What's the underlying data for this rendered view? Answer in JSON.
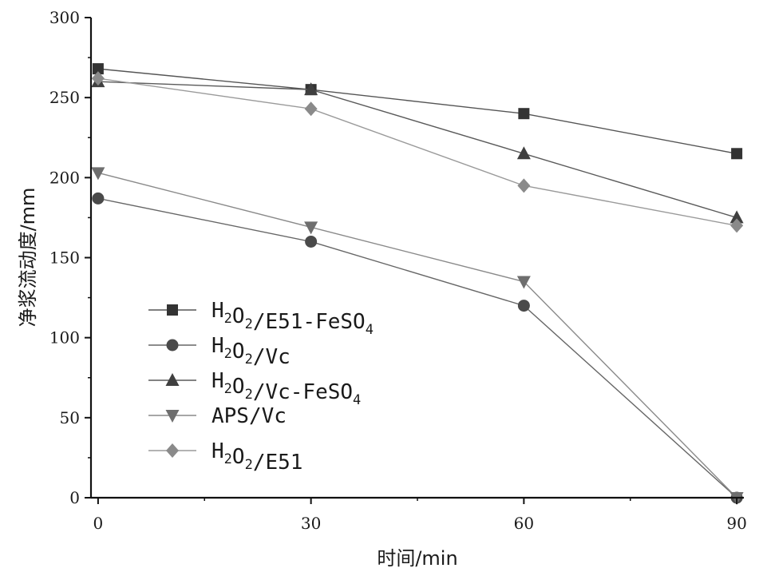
{
  "chart_data": {
    "type": "line",
    "xlabel": "时间/min",
    "ylabel": "净浆流动度/mm",
    "x": [
      0,
      30,
      60,
      90
    ],
    "xlim": [
      -1,
      91
    ],
    "ylim": [
      0,
      300
    ],
    "xticks": [
      "0",
      "30",
      "60",
      "90"
    ],
    "yticks": [
      "0",
      "50",
      "100",
      "150",
      "200",
      "250",
      "300"
    ],
    "grid": false,
    "legend_position": "lower-left",
    "series": [
      {
        "name": "H2O2/E51-FeSO4",
        "label_parts": [
          [
            "H",
            ""
          ],
          [
            "2",
            "sub"
          ],
          [
            "O",
            ""
          ],
          [
            "2",
            "sub"
          ],
          [
            "/E51-FeSO",
            ""
          ],
          [
            "4",
            "sub"
          ]
        ],
        "marker": "square",
        "color": "#333333",
        "line_color": "#555555",
        "values": [
          268,
          255,
          240,
          215
        ]
      },
      {
        "name": "H2O2/Vc",
        "label_parts": [
          [
            "H",
            ""
          ],
          [
            "2",
            "sub"
          ],
          [
            "O",
            ""
          ],
          [
            "2",
            "sub"
          ],
          [
            "/Vc",
            ""
          ]
        ],
        "marker": "circle",
        "color": "#4a4a4a",
        "line_color": "#666666",
        "values": [
          187,
          160,
          120,
          0
        ]
      },
      {
        "name": "H2O2/Vc-FeSO4",
        "label_parts": [
          [
            "H",
            ""
          ],
          [
            "2",
            "sub"
          ],
          [
            "O",
            ""
          ],
          [
            "2",
            "sub"
          ],
          [
            "/Vc-FeSO",
            ""
          ],
          [
            "4",
            "sub"
          ]
        ],
        "marker": "triangle-up",
        "color": "#3f3f3f",
        "line_color": "#5a5a5a",
        "values": [
          260,
          255,
          215,
          175
        ]
      },
      {
        "name": "APS/Vc",
        "label_parts": [
          [
            "APS/Vc",
            ""
          ]
        ],
        "marker": "triangle-down",
        "color": "#6e6e6e",
        "line_color": "#8a8a8a",
        "values": [
          203,
          169,
          135,
          0
        ]
      },
      {
        "name": "H2O2/E51",
        "label_parts": [
          [
            "H",
            ""
          ],
          [
            "2",
            "sub"
          ],
          [
            "O",
            ""
          ],
          [
            "2",
            "sub"
          ],
          [
            "/E51",
            ""
          ]
        ],
        "marker": "diamond",
        "color": "#8a8a8a",
        "line_color": "#9a9a9a",
        "values": [
          262,
          243,
          195,
          170
        ]
      }
    ]
  }
}
